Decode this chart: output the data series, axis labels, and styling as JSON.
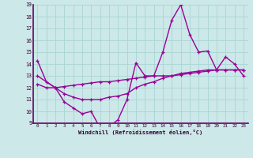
{
  "xlabel": "Windchill (Refroidissement éolien,°C)",
  "background_color": "#cce8e8",
  "grid_color": "#aad4d4",
  "line_color": "#990099",
  "spine_color": "#660066",
  "xlim": [
    -0.5,
    23.5
  ],
  "ylim": [
    9,
    19
  ],
  "yticks": [
    9,
    10,
    11,
    12,
    13,
    14,
    15,
    16,
    17,
    18,
    19
  ],
  "xticks": [
    0,
    1,
    2,
    3,
    4,
    5,
    6,
    7,
    8,
    9,
    10,
    11,
    12,
    13,
    14,
    15,
    16,
    17,
    18,
    19,
    20,
    21,
    22,
    23
  ],
  "series1_x": [
    0,
    1,
    2,
    3,
    4,
    5,
    6,
    7,
    8,
    9,
    10,
    11,
    12,
    13,
    14,
    15,
    16,
    17,
    18,
    19,
    20,
    21,
    22,
    23
  ],
  "series1_y": [
    14.3,
    12.5,
    12.0,
    10.8,
    10.3,
    9.8,
    10.0,
    8.6,
    8.7,
    9.3,
    11.0,
    14.1,
    13.0,
    13.0,
    15.0,
    17.7,
    19.0,
    16.5,
    15.0,
    15.1,
    13.5,
    14.6,
    14.0,
    13.0
  ],
  "series2_x": [
    0,
    2,
    3,
    4,
    5,
    6,
    7,
    8,
    9,
    10,
    11,
    12,
    13,
    14,
    15,
    16,
    17,
    18,
    19,
    20,
    21,
    22,
    23
  ],
  "series2_y": [
    13.0,
    12.0,
    11.5,
    11.2,
    11.0,
    11.0,
    11.0,
    11.2,
    11.3,
    11.5,
    12.0,
    12.3,
    12.5,
    12.8,
    13.0,
    13.2,
    13.3,
    13.4,
    13.5,
    13.5,
    13.5,
    13.5,
    13.5
  ],
  "series3_x": [
    0,
    1,
    2,
    3,
    4,
    5,
    6,
    7,
    8,
    9,
    10,
    11,
    12,
    13,
    14,
    15,
    16,
    17,
    18,
    19,
    20,
    21,
    22,
    23
  ],
  "series3_y": [
    12.3,
    12.0,
    12.0,
    12.1,
    12.2,
    12.3,
    12.4,
    12.5,
    12.5,
    12.6,
    12.7,
    12.8,
    12.9,
    13.0,
    13.0,
    13.0,
    13.1,
    13.2,
    13.3,
    13.4,
    13.5,
    13.5,
    13.5,
    13.5
  ]
}
